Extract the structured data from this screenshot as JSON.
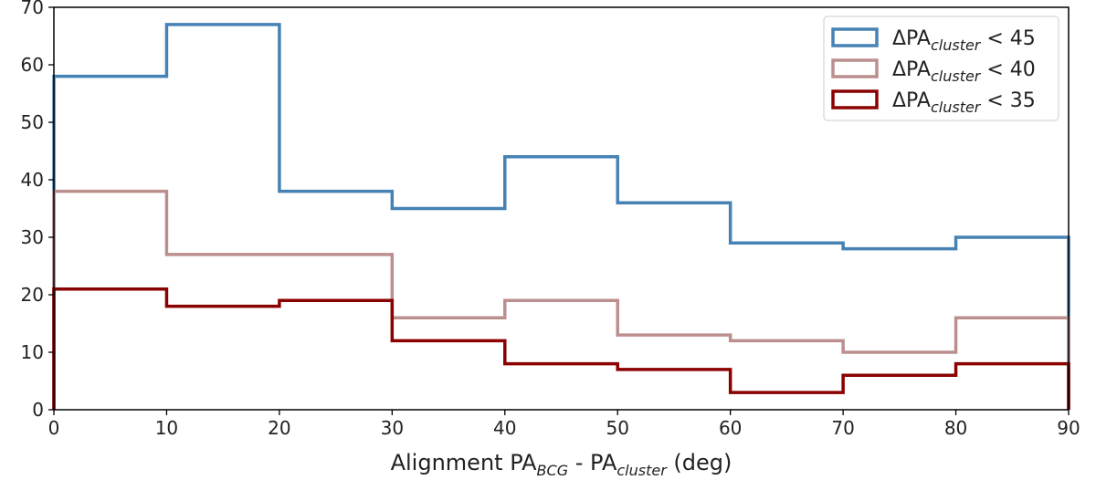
{
  "chart_data": {
    "type": "histogram-step",
    "bin_edges": [
      0,
      10,
      20,
      30,
      40,
      50,
      60,
      70,
      80,
      90
    ],
    "series": [
      {
        "label_main": "ΔPA",
        "label_sub": "cluster",
        "label_rest": " < 45",
        "color": "#4682b4",
        "values": [
          58,
          67,
          38,
          35,
          44,
          36,
          29,
          28,
          30
        ]
      },
      {
        "label_main": "ΔPA",
        "label_sub": "cluster",
        "label_rest": " < 40",
        "color": "#bc8f8f",
        "values": [
          38,
          27,
          27,
          16,
          19,
          13,
          12,
          10,
          16
        ]
      },
      {
        "label_main": "ΔPA",
        "label_sub": "cluster",
        "label_rest": " < 35",
        "color": "#8b0000",
        "values": [
          21,
          18,
          19,
          12,
          8,
          7,
          3,
          6,
          8
        ]
      }
    ],
    "xlim": [
      0,
      90
    ],
    "ylim": [
      0,
      70
    ],
    "xticks": [
      "0",
      "10",
      "20",
      "30",
      "40",
      "50",
      "60",
      "70",
      "80",
      "90"
    ],
    "yticks": [
      "0",
      "10",
      "20",
      "30",
      "40",
      "50",
      "60",
      "70"
    ],
    "xlabel": {
      "part1": "Alignment PA",
      "sub1": "BCG",
      "part2": " - PA",
      "sub2": "cluster",
      "part3": " (deg)"
    },
    "ylabel": "",
    "grid": false,
    "legend_position": "top-right"
  }
}
